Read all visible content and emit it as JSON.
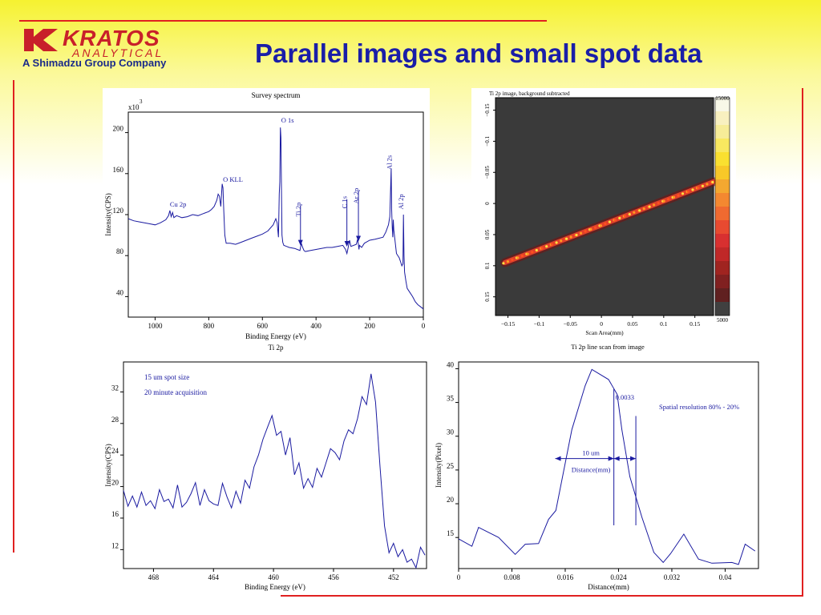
{
  "title": "Parallel images and small spot data",
  "logo": {
    "word": "KRATOS",
    "sub": "ANALYTICAL",
    "company": "A Shimadzu Group Company"
  },
  "colors": {
    "title": "#1a1ea8",
    "accent_red": "#e02020",
    "logo_red": "#c8202a",
    "plot_line": "#1a1aa0"
  },
  "chart_data": [
    {
      "type": "line",
      "title": "Survey spectrum",
      "subtitle": "Ti 2p",
      "xlabel": "Binding Energy (eV)",
      "ylabel": "Intensity(CPS)",
      "multiplier": "x10",
      "multiplier_exp": "3",
      "xlim": [
        1100,
        0
      ],
      "ylim": [
        20,
        220
      ],
      "xticks": [
        1000,
        800,
        600,
        400,
        200,
        0
      ],
      "yticks": [
        40,
        80,
        120,
        160,
        200
      ],
      "x": [
        1100,
        1080,
        1060,
        1040,
        1020,
        1000,
        980,
        960,
        950,
        945,
        940,
        935,
        930,
        920,
        900,
        880,
        860,
        840,
        820,
        800,
        790,
        780,
        770,
        765,
        760,
        755,
        750,
        747,
        744,
        740,
        735,
        730,
        720,
        700,
        680,
        660,
        640,
        620,
        600,
        580,
        560,
        550,
        545,
        540,
        537,
        535,
        533,
        531,
        529,
        527,
        524,
        520,
        510,
        500,
        480,
        470,
        460,
        455,
        450,
        445,
        440,
        420,
        400,
        380,
        360,
        340,
        320,
        300,
        290,
        285,
        280,
        275,
        270,
        250,
        245,
        242,
        240,
        238,
        230,
        220,
        200,
        180,
        150,
        140,
        130,
        125,
        120,
        118,
        116,
        114,
        112,
        110,
        100,
        90,
        85,
        80,
        76,
        74,
        72,
        70,
        65,
        60,
        50,
        40,
        30,
        20,
        10,
        0
      ],
      "y": [
        116,
        114,
        113,
        112,
        111,
        110,
        112,
        115,
        119,
        124,
        118,
        122,
        117,
        119,
        117,
        118,
        120,
        119,
        121,
        123,
        125,
        128,
        134,
        140,
        138,
        128,
        150,
        146,
        124,
        100,
        92,
        92,
        92,
        91,
        93,
        95,
        97,
        99,
        101,
        104,
        110,
        116,
        112,
        98,
        140,
        152,
        205,
        195,
        150,
        100,
        93,
        90,
        89,
        88,
        87,
        86,
        85,
        92,
        88,
        85,
        84,
        85,
        86,
        87,
        88,
        88,
        89,
        90,
        86,
        82,
        88,
        95,
        89,
        91,
        96,
        91,
        86,
        90,
        88,
        92,
        95,
        96,
        98,
        103,
        110,
        118,
        165,
        125,
        108,
        98,
        115,
        105,
        82,
        78,
        74,
        70,
        72,
        120,
        80,
        64,
        55,
        48,
        44,
        40,
        35,
        32,
        30,
        28
      ],
      "annotations": [
        {
          "label": "O 1s",
          "x": 530,
          "y": 210
        },
        {
          "label": "O KLL",
          "x": 747,
          "y": 152
        },
        {
          "label": "Cu 2p",
          "x": 945,
          "y": 128
        },
        {
          "label": "Ti 2p",
          "x": 458,
          "y": 132,
          "arrow_to": 89
        },
        {
          "label": "C 1s",
          "x": 285,
          "y": 138,
          "arrow_to": 88
        },
        {
          "label": "Ar 2p",
          "x": 242,
          "y": 146,
          "arrow_to": 93
        },
        {
          "label": "Al 2s",
          "x": 118,
          "y": 178
        },
        {
          "label": "Al 2p",
          "x": 74,
          "y": 140
        }
      ]
    },
    {
      "type": "heatmap",
      "title": "Ti 2p image, background subtracted",
      "xlabel": "Scan Area(mm)",
      "xlim": [
        -0.17,
        0.18
      ],
      "ylim": [
        0.18,
        -0.17
      ],
      "xticks": [
        -0.15,
        -0.1,
        -0.05,
        0,
        0.05,
        0.1,
        0.15
      ],
      "yticks": [
        -0.15,
        -0.1,
        -0.05,
        0,
        0.05,
        0.1,
        0.15
      ],
      "line_from": [
        -0.155,
        0.095
      ],
      "line_to": [
        0.18,
        -0.035
      ],
      "colorbar": {
        "max_label": "15000",
        "min_label": "5000"
      }
    },
    {
      "type": "line",
      "legend_texts": [
        "15 um spot size",
        "20 minute acquisition"
      ],
      "xlabel": "Binding Energy (eV)",
      "ylabel": "Intensity(CPS)",
      "xlim": [
        470,
        449.8
      ],
      "ylim": [
        9.6,
        35.8
      ],
      "xticks": [
        468,
        464,
        460,
        456,
        452
      ],
      "yticks": [
        12,
        16,
        20,
        24,
        28,
        32
      ],
      "x": [
        470,
        469.7,
        469.4,
        469.1,
        468.8,
        468.5,
        468.2,
        467.9,
        467.6,
        467.3,
        467,
        466.7,
        466.4,
        466.1,
        465.8,
        465.5,
        465.2,
        464.9,
        464.6,
        464.3,
        464,
        463.7,
        463.4,
        463.1,
        462.8,
        462.5,
        462.2,
        461.9,
        461.6,
        461.3,
        461,
        460.7,
        460.4,
        460.1,
        459.8,
        459.5,
        459.2,
        458.9,
        458.6,
        458.3,
        458,
        457.7,
        457.4,
        457.1,
        456.8,
        456.5,
        456.2,
        455.9,
        455.6,
        455.3,
        455,
        454.7,
        454.4,
        454.1,
        453.8,
        453.5,
        453.2,
        452.9,
        452.6,
        452.3,
        452,
        451.7,
        451.4,
        451.1,
        450.8,
        450.5,
        450.2,
        449.9
      ],
      "y": [
        19.5,
        17.5,
        18.8,
        17.4,
        19.3,
        17.6,
        18.2,
        17.2,
        19.6,
        18.1,
        18.4,
        17.3,
        20.2,
        17.4,
        18,
        19.1,
        20.5,
        17.6,
        19.6,
        18.2,
        17.8,
        17.6,
        20.4,
        18.7,
        17.3,
        19.4,
        17.9,
        20.8,
        19.8,
        22.5,
        24,
        26,
        27.5,
        29,
        26.5,
        27,
        24,
        26.2,
        21.5,
        23,
        19.8,
        21,
        19.9,
        22.3,
        21.2,
        23,
        24.8,
        24.3,
        23.4,
        25.8,
        27.2,
        26.7,
        28.6,
        31.4,
        30.4,
        34.3,
        30.7,
        22.5,
        15,
        11.6,
        12.8,
        11.1,
        12,
        10.4,
        10.8,
        9.7,
        12.3,
        11.3
      ]
    },
    {
      "type": "line",
      "title": "Ti 2p line scan from image",
      "xlabel": "Distance(mm)",
      "ylabel": "Intensity(Pixel)",
      "xlim": [
        0,
        0.045
      ],
      "ylim": [
        10.4,
        41
      ],
      "xticks": [
        0,
        0.008,
        0.016,
        0.024,
        0.032,
        0.04
      ],
      "yticks": [
        15,
        20,
        25,
        30,
        35,
        40
      ],
      "x": [
        0,
        0.002,
        0.003,
        0.006,
        0.0085,
        0.01,
        0.012,
        0.0135,
        0.0146,
        0.017,
        0.019,
        0.02,
        0.0225,
        0.0238,
        0.0245,
        0.0257,
        0.0275,
        0.0293,
        0.0307,
        0.0318,
        0.0338,
        0.036,
        0.038,
        0.041,
        0.042,
        0.043,
        0.0445
      ],
      "y": [
        14.8,
        13.7,
        16.5,
        15,
        12.5,
        14,
        14.1,
        17.7,
        19,
        31,
        37.5,
        39.9,
        38.4,
        36.2,
        31,
        24,
        18,
        12.8,
        11.3,
        12.6,
        15.5,
        11.8,
        11.2,
        11.3,
        11,
        14,
        13
      ],
      "annotations": {
        "resolution_value": "0.0033",
        "resolution_label": "Spatial resolution 80% - 20%",
        "width_label": "10 um",
        "distance_label": "Distance(mm)"
      }
    }
  ]
}
